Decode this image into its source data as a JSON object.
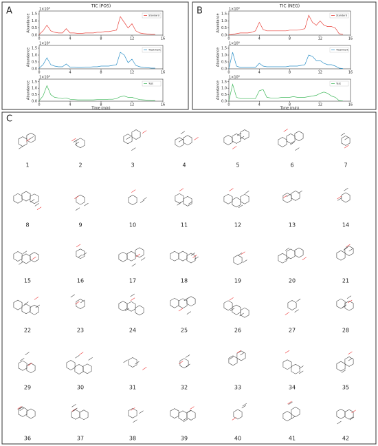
{
  "panels": {
    "a": "A",
    "b": "B",
    "c": "C"
  },
  "chart_data": [
    {
      "type": "line",
      "title": "TIC (POS)",
      "ylabel": "Abundance",
      "annotation": "1×10⁸",
      "legend": "upper right",
      "x": [
        0,
        0.5,
        1,
        1.5,
        2,
        2.5,
        3,
        3.5,
        4,
        4.5,
        5,
        5.5,
        6,
        6.5,
        7,
        7.5,
        8,
        8.5,
        9,
        9.5,
        10,
        10.5,
        11,
        11.5,
        12,
        12.5,
        13,
        13.5,
        14,
        14.5,
        15
      ],
      "xlim": [
        0,
        16
      ],
      "xticks": [
        0,
        4,
        8,
        12,
        16
      ],
      "ylim": [
        0,
        1.7
      ],
      "yticks": [
        {
          "value": 0,
          "label": "0.0"
        },
        {
          "value": 0.5,
          "label": "0.5"
        },
        {
          "value": 1,
          "label": "1.0"
        },
        {
          "value": 1.5,
          "label": "1.5"
        }
      ],
      "series": [
        {
          "name": "Standard",
          "color": "#e8423b",
          "values": [
            0.05,
            0.3,
            0.7,
            0.3,
            0.2,
            0.15,
            0.15,
            0.45,
            0.15,
            0.15,
            0.12,
            0.12,
            0.15,
            0.15,
            0.15,
            0.2,
            0.2,
            0.25,
            0.25,
            0.3,
            0.35,
            1.3,
            0.9,
            0.5,
            0.8,
            0.3,
            0.15,
            0.1,
            0.08,
            0.05,
            0.05
          ]
        }
      ]
    },
    {
      "type": "line",
      "ylabel": "Abundance",
      "annotation": "1×10⁸",
      "legend": "upper right",
      "x": [
        0,
        0.5,
        1,
        1.5,
        2,
        2.5,
        3,
        3.5,
        4,
        4.5,
        5,
        5.5,
        6,
        6.5,
        7,
        7.5,
        8,
        8.5,
        9,
        9.5,
        10,
        10.5,
        11,
        11.5,
        12,
        12.5,
        13,
        13.5,
        14,
        14.5,
        15
      ],
      "xlim": [
        0,
        16
      ],
      "xticks": [
        0,
        4,
        8,
        12,
        16
      ],
      "ylim": [
        0,
        1.7
      ],
      "yticks": [
        {
          "value": 0,
          "label": "0.0"
        },
        {
          "value": 0.5,
          "label": "0.5"
        },
        {
          "value": 1,
          "label": "1.0"
        },
        {
          "value": 1.5,
          "label": "1.5"
        }
      ],
      "series": [
        {
          "name": "Treatment",
          "color": "#2a8fc7",
          "values": [
            0.05,
            0.3,
            0.8,
            0.3,
            0.2,
            0.15,
            0.15,
            0.35,
            0.12,
            0.12,
            0.1,
            0.1,
            0.12,
            0.12,
            0.15,
            0.15,
            0.2,
            0.2,
            0.2,
            0.25,
            0.3,
            1.2,
            1.0,
            0.45,
            0.7,
            0.25,
            0.15,
            0.1,
            0.08,
            0.05,
            0.05
          ]
        }
      ]
    },
    {
      "type": "line",
      "ylabel": "Abundance",
      "xlabel": "Time (min)",
      "annotation": "1×10⁸",
      "legend": "upper right",
      "x": [
        0,
        0.5,
        1,
        1.5,
        2,
        2.5,
        3,
        3.5,
        4,
        4.5,
        5,
        5.5,
        6,
        6.5,
        7,
        7.5,
        8,
        8.5,
        9,
        9.5,
        10,
        10.5,
        11,
        11.5,
        12,
        12.5,
        13,
        13.5,
        14,
        14.5,
        15
      ],
      "xlim": [
        0,
        16
      ],
      "xticks": [
        0,
        4,
        8,
        12,
        16
      ],
      "ylim": [
        0,
        1.7
      ],
      "yticks": [
        {
          "value": 0,
          "label": "0.0"
        },
        {
          "value": 0.5,
          "label": "0.5"
        },
        {
          "value": 1,
          "label": "1.0"
        },
        {
          "value": 1.5,
          "label": "1.5"
        }
      ],
      "series": [
        {
          "name": "Test",
          "color": "#3fb85a",
          "values": [
            0.05,
            0.4,
            1.2,
            0.5,
            0.3,
            0.25,
            0.2,
            0.25,
            0.15,
            0.12,
            0.1,
            0.1,
            0.1,
            0.1,
            0.1,
            0.12,
            0.12,
            0.12,
            0.15,
            0.15,
            0.2,
            0.35,
            0.4,
            0.3,
            0.3,
            0.2,
            0.12,
            0.1,
            0.08,
            0.05,
            0.05
          ]
        }
      ]
    },
    {
      "type": "line",
      "title": "TIC (NEG)",
      "ylabel": "Abundance",
      "annotation": "1×10⁸",
      "legend": "upper right",
      "x": [
        0,
        0.5,
        1,
        1.5,
        2,
        2.5,
        3,
        3.5,
        4,
        4.5,
        5,
        5.5,
        6,
        6.5,
        7,
        7.5,
        8,
        8.5,
        9,
        9.5,
        10,
        10.5,
        11,
        11.5,
        12,
        12.5,
        13,
        13.5,
        14,
        14.5,
        15
      ],
      "xlim": [
        0,
        16
      ],
      "xticks": [
        0,
        4,
        8,
        12,
        16
      ],
      "ylim": [
        0,
        1.7
      ],
      "yticks": [
        {
          "value": 0,
          "label": "0.0"
        },
        {
          "value": 0.5,
          "label": "0.5"
        },
        {
          "value": 1,
          "label": "1.0"
        },
        {
          "value": 1.5,
          "label": "1.5"
        }
      ],
      "series": [
        {
          "name": "Standard",
          "color": "#e8423b",
          "values": [
            0.02,
            0.05,
            0.1,
            0.15,
            0.15,
            0.15,
            0.2,
            0.3,
            0.9,
            0.4,
            0.3,
            0.3,
            0.3,
            0.3,
            0.3,
            0.3,
            0.35,
            0.35,
            0.35,
            0.4,
            0.45,
            1.4,
            0.9,
            0.7,
            1.0,
            0.7,
            0.6,
            0.6,
            0.5,
            0.1,
            0.05
          ]
        }
      ]
    },
    {
      "type": "line",
      "ylabel": "Abundance",
      "annotation": "1×10⁸",
      "legend": "upper right",
      "x": [
        0,
        0.5,
        1,
        1.5,
        2,
        2.5,
        3,
        3.5,
        4,
        4.5,
        5,
        5.5,
        6,
        6.5,
        7,
        7.5,
        8,
        8.5,
        9,
        9.5,
        10,
        10.5,
        11,
        11.5,
        12,
        12.5,
        13,
        13.5,
        14,
        14.5,
        15
      ],
      "xlim": [
        0,
        16
      ],
      "xticks": [
        0,
        4,
        8,
        12,
        16
      ],
      "ylim": [
        0,
        1.7
      ],
      "yticks": [
        {
          "value": 0,
          "label": "0.0"
        },
        {
          "value": 0.5,
          "label": "0.5"
        },
        {
          "value": 1,
          "label": "1.0"
        },
        {
          "value": 1.5,
          "label": "1.5"
        }
      ],
      "series": [
        {
          "name": "Treatment",
          "color": "#2a8fc7",
          "values": [
            0.02,
            1.2,
            0.2,
            0.1,
            0.1,
            0.1,
            0.1,
            0.1,
            0.4,
            0.2,
            0.15,
            0.15,
            0.15,
            0.15,
            0.15,
            0.15,
            0.2,
            0.2,
            0.2,
            0.25,
            0.3,
            1.0,
            0.9,
            0.6,
            0.6,
            0.4,
            0.3,
            0.3,
            0.2,
            0.05,
            0.02
          ]
        }
      ]
    },
    {
      "type": "line",
      "ylabel": "Abundance",
      "xlabel": "Time (min)",
      "annotation": "1×10⁸",
      "legend": "upper right",
      "x": [
        0,
        0.5,
        1,
        1.5,
        2,
        2.5,
        3,
        3.5,
        4,
        4.5,
        5,
        5.5,
        6,
        6.5,
        7,
        7.5,
        8,
        8.5,
        9,
        9.5,
        10,
        10.5,
        11,
        11.5,
        12,
        12.5,
        13,
        13.5,
        14,
        14.5,
        15
      ],
      "xlim": [
        0,
        16
      ],
      "xticks": [
        0,
        4,
        8,
        12,
        16
      ],
      "ylim": [
        0,
        1.7
      ],
      "yticks": [
        {
          "value": 0,
          "label": "0.0"
        },
        {
          "value": 0.5,
          "label": "0.5"
        },
        {
          "value": 1,
          "label": "1.0"
        },
        {
          "value": 1.5,
          "label": "1.5"
        }
      ],
      "series": [
        {
          "name": "Test",
          "color": "#3fb85a",
          "values": [
            0.02,
            1.3,
            0.3,
            0.2,
            0.2,
            0.2,
            0.2,
            0.2,
            0.8,
            0.9,
            0.3,
            0.25,
            0.25,
            0.25,
            0.3,
            0.3,
            0.3,
            0.35,
            0.3,
            0.3,
            0.3,
            0.35,
            0.4,
            0.45,
            0.6,
            0.7,
            0.6,
            0.4,
            0.3,
            0.05,
            0.02
          ]
        }
      ]
    }
  ],
  "compounds": [
    "1",
    "2",
    "3",
    "4",
    "5",
    "6",
    "7",
    "8",
    "9",
    "10",
    "11",
    "12",
    "13",
    "14",
    "15",
    "16",
    "17",
    "18",
    "19",
    "20",
    "21",
    "22",
    "23",
    "24",
    "25",
    "26",
    "27",
    "28",
    "29",
    "30",
    "31",
    "32",
    "33",
    "34",
    "35",
    "36",
    "37",
    "38",
    "39",
    "40",
    "41",
    "42"
  ]
}
